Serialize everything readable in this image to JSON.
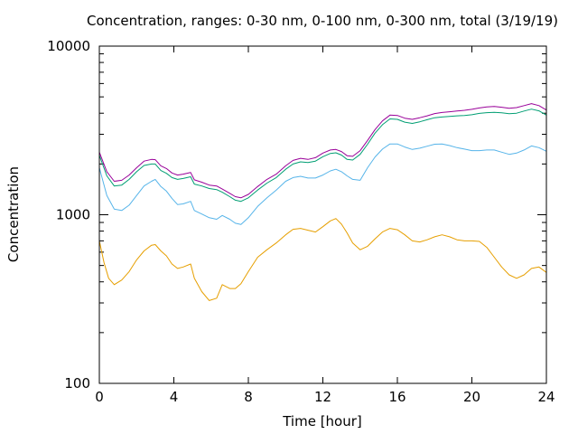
{
  "chart_data": {
    "type": "line",
    "title": "Concentration, ranges: 0-30 nm, 0-100 nm, 0-300 nm, total (3/19/19)",
    "xlabel": "Time [hour]",
    "ylabel": "Concentration",
    "xlim": [
      0,
      24
    ],
    "ylim": [
      100,
      10000
    ],
    "yscale": "log",
    "grid": false,
    "legend": "none",
    "xticks": [
      0,
      4,
      8,
      12,
      16,
      20,
      24
    ],
    "yticks": [
      100,
      1000,
      10000
    ],
    "ytick_labels": [
      "100",
      "1000",
      "10000"
    ],
    "series": [
      {
        "color": "#e69f00",
        "x": [
          0,
          0.25,
          0.5,
          0.8,
          1.2,
          1.6,
          2.0,
          2.4,
          2.8,
          3.0,
          3.3,
          3.6,
          3.9,
          4.2,
          4.5,
          4.9,
          5.1,
          5.5,
          5.9,
          6.3,
          6.6,
          7.0,
          7.3,
          7.6,
          8.0,
          8.5,
          9.0,
          9.5,
          10.0,
          10.4,
          10.8,
          11.2,
          11.6,
          12.0,
          12.4,
          12.7,
          13.0,
          13.3,
          13.6,
          14.0,
          14.4,
          14.8,
          15.2,
          15.6,
          16.0,
          16.4,
          16.8,
          17.2,
          17.6,
          18.0,
          18.4,
          18.8,
          19.2,
          19.6,
          20.0,
          20.4,
          20.8,
          21.2,
          21.6,
          22.0,
          22.4,
          22.8,
          23.2,
          23.6,
          24.0
        ],
        "y": [
          700,
          520,
          420,
          385,
          410,
          460,
          540,
          610,
          660,
          665,
          610,
          570,
          510,
          480,
          490,
          510,
          420,
          350,
          310,
          320,
          385,
          365,
          365,
          390,
          460,
          560,
          620,
          680,
          760,
          820,
          830,
          810,
          790,
          850,
          920,
          950,
          880,
          780,
          680,
          620,
          650,
          720,
          790,
          830,
          815,
          760,
          700,
          690,
          710,
          740,
          760,
          740,
          710,
          700,
          700,
          695,
          640,
          560,
          490,
          440,
          420,
          440,
          480,
          490,
          455
        ]
      },
      {
        "color": "#56b4e9",
        "x": [
          0,
          0.4,
          0.8,
          1.2,
          1.6,
          2.0,
          2.4,
          2.8,
          3.0,
          3.3,
          3.6,
          3.9,
          4.2,
          4.5,
          4.9,
          5.1,
          5.5,
          5.9,
          6.3,
          6.6,
          7.0,
          7.3,
          7.6,
          8.0,
          8.5,
          9.0,
          9.5,
          10.0,
          10.4,
          10.8,
          11.2,
          11.6,
          12.0,
          12.4,
          12.7,
          13.0,
          13.3,
          13.6,
          14.0,
          14.4,
          14.8,
          15.2,
          15.6,
          16.0,
          16.4,
          16.8,
          17.2,
          17.6,
          18.0,
          18.4,
          18.8,
          19.2,
          19.6,
          20.0,
          20.4,
          20.8,
          21.2,
          21.6,
          22.0,
          22.4,
          22.8,
          23.2,
          23.6,
          24.0
        ],
        "y": [
          1900,
          1300,
          1080,
          1060,
          1140,
          1300,
          1480,
          1580,
          1620,
          1470,
          1380,
          1250,
          1150,
          1160,
          1200,
          1060,
          1010,
          960,
          940,
          990,
          940,
          890,
          875,
          960,
          1120,
          1260,
          1400,
          1580,
          1660,
          1690,
          1650,
          1650,
          1720,
          1820,
          1860,
          1800,
          1700,
          1620,
          1600,
          1900,
          2200,
          2450,
          2630,
          2630,
          2520,
          2440,
          2480,
          2550,
          2620,
          2630,
          2570,
          2500,
          2450,
          2400,
          2400,
          2420,
          2420,
          2350,
          2280,
          2320,
          2420,
          2560,
          2500,
          2380
        ]
      },
      {
        "color": "#009e73",
        "x": [
          0,
          0.4,
          0.8,
          1.2,
          1.6,
          2.0,
          2.4,
          2.8,
          3.0,
          3.3,
          3.6,
          3.9,
          4.2,
          4.5,
          4.9,
          5.1,
          5.5,
          5.9,
          6.3,
          6.6,
          7.0,
          7.3,
          7.6,
          8.0,
          8.5,
          9.0,
          9.5,
          10.0,
          10.4,
          10.8,
          11.2,
          11.6,
          12.0,
          12.4,
          12.7,
          13.0,
          13.3,
          13.6,
          14.0,
          14.4,
          14.8,
          15.2,
          15.6,
          16.0,
          16.4,
          16.8,
          17.2,
          17.6,
          18.0,
          18.4,
          18.8,
          19.2,
          19.6,
          20.0,
          20.4,
          20.8,
          21.2,
          21.6,
          22.0,
          22.4,
          22.8,
          23.2,
          23.6,
          24.0
        ],
        "y": [
          2250,
          1700,
          1480,
          1500,
          1620,
          1800,
          1960,
          2000,
          2000,
          1830,
          1760,
          1660,
          1620,
          1640,
          1680,
          1520,
          1480,
          1430,
          1410,
          1360,
          1280,
          1220,
          1200,
          1260,
          1400,
          1540,
          1660,
          1860,
          2000,
          2060,
          2040,
          2080,
          2210,
          2310,
          2330,
          2260,
          2130,
          2110,
          2280,
          2620,
          3050,
          3420,
          3700,
          3680,
          3540,
          3480,
          3560,
          3660,
          3760,
          3800,
          3830,
          3860,
          3880,
          3920,
          3990,
          4030,
          4050,
          4020,
          3970,
          4000,
          4120,
          4230,
          4130,
          3900
        ]
      },
      {
        "color": "#990099",
        "x": [
          0,
          0.4,
          0.8,
          1.2,
          1.6,
          2.0,
          2.4,
          2.8,
          3.0,
          3.3,
          3.6,
          3.9,
          4.2,
          4.5,
          4.9,
          5.1,
          5.5,
          5.9,
          6.3,
          6.6,
          7.0,
          7.3,
          7.6,
          8.0,
          8.5,
          9.0,
          9.5,
          10.0,
          10.4,
          10.8,
          11.2,
          11.6,
          12.0,
          12.4,
          12.7,
          13.0,
          13.3,
          13.6,
          14.0,
          14.4,
          14.8,
          15.2,
          15.6,
          16.0,
          16.4,
          16.8,
          17.2,
          17.6,
          18.0,
          18.4,
          18.8,
          19.2,
          19.6,
          20.0,
          20.4,
          20.8,
          21.2,
          21.6,
          22.0,
          22.4,
          22.8,
          23.2,
          23.6,
          24.0
        ],
        "y": [
          2350,
          1800,
          1580,
          1600,
          1720,
          1900,
          2080,
          2130,
          2120,
          1950,
          1880,
          1770,
          1720,
          1740,
          1780,
          1610,
          1560,
          1500,
          1480,
          1420,
          1340,
          1280,
          1260,
          1320,
          1470,
          1620,
          1740,
          1950,
          2100,
          2160,
          2130,
          2180,
          2320,
          2420,
          2440,
          2370,
          2240,
          2220,
          2400,
          2760,
          3200,
          3600,
          3900,
          3880,
          3740,
          3680,
          3760,
          3860,
          3980,
          4040,
          4080,
          4120,
          4160,
          4220,
          4300,
          4360,
          4390,
          4340,
          4280,
          4320,
          4440,
          4560,
          4440,
          4180
        ]
      }
    ]
  }
}
